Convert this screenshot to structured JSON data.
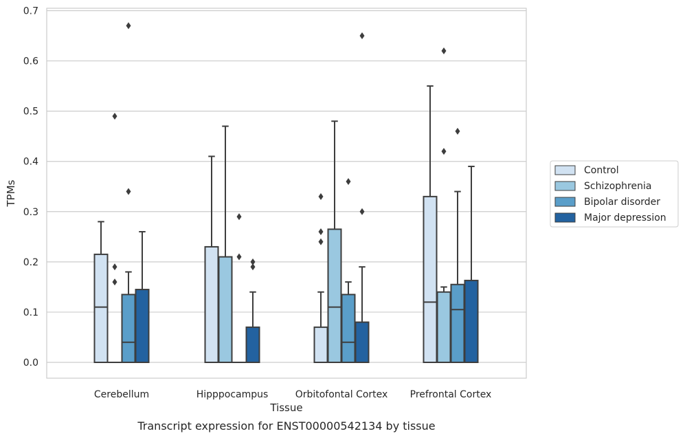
{
  "chart_data": {
    "type": "box",
    "xlabel": "Tissue",
    "ylabel": "TPMs",
    "caption": "Transcript expression for ENST00000542134 by tissue",
    "ylim": [
      -0.032,
      0.705
    ],
    "yticks": [
      0.0,
      0.1,
      0.2,
      0.3,
      0.4,
      0.5,
      0.6,
      0.7
    ],
    "ytick_labels": [
      "0.0",
      "0.1",
      "0.2",
      "0.3",
      "0.4",
      "0.5",
      "0.6",
      "0.7"
    ],
    "grid": "horizontal",
    "legend_position": "right",
    "categories": [
      "Cerebellum",
      "Hipppocampus",
      "Orbitofontal Cortex",
      "Prefrontal Cortex"
    ],
    "series": [
      {
        "name": "Control",
        "color": "#d1e2f2",
        "boxes": [
          {
            "lower_whisker": 0.0,
            "q1": 0.0,
            "median": 0.11,
            "q3": 0.215,
            "upper_whisker": 0.28,
            "outliers": []
          },
          {
            "lower_whisker": 0.0,
            "q1": 0.0,
            "median": 0.0,
            "q3": 0.23,
            "upper_whisker": 0.41,
            "outliers": []
          },
          {
            "lower_whisker": 0.0,
            "q1": 0.0,
            "median": 0.0,
            "q3": 0.07,
            "upper_whisker": 0.14,
            "outliers": [
              0.24,
              0.26,
              0.33
            ]
          },
          {
            "lower_whisker": 0.0,
            "q1": 0.0,
            "median": 0.12,
            "q3": 0.33,
            "upper_whisker": 0.55,
            "outliers": []
          }
        ]
      },
      {
        "name": "Schizophrenia",
        "color": "#9ac8e0",
        "boxes": [
          {
            "lower_whisker": 0.0,
            "q1": 0.0,
            "median": 0.0,
            "q3": 0.0,
            "upper_whisker": 0.0,
            "outliers": [
              0.16,
              0.19,
              0.49
            ]
          },
          {
            "lower_whisker": 0.0,
            "q1": 0.0,
            "median": 0.0,
            "q3": 0.21,
            "upper_whisker": 0.47,
            "outliers": []
          },
          {
            "lower_whisker": 0.0,
            "q1": 0.0,
            "median": 0.11,
            "q3": 0.265,
            "upper_whisker": 0.48,
            "outliers": []
          },
          {
            "lower_whisker": 0.0,
            "q1": 0.0,
            "median": 0.0,
            "q3": 0.14,
            "upper_whisker": 0.15,
            "outliers": [
              0.42,
              0.62
            ]
          }
        ]
      },
      {
        "name": "Bipolar disorder",
        "color": "#5a9ec9",
        "boxes": [
          {
            "lower_whisker": 0.0,
            "q1": 0.0,
            "median": 0.04,
            "q3": 0.135,
            "upper_whisker": 0.18,
            "outliers": [
              0.34,
              0.67
            ]
          },
          {
            "lower_whisker": 0.0,
            "q1": 0.0,
            "median": 0.0,
            "q3": 0.0,
            "upper_whisker": 0.0,
            "outliers": [
              0.21,
              0.29
            ]
          },
          {
            "lower_whisker": 0.0,
            "q1": 0.0,
            "median": 0.04,
            "q3": 0.135,
            "upper_whisker": 0.16,
            "outliers": [
              0.36
            ]
          },
          {
            "lower_whisker": 0.0,
            "q1": 0.0,
            "median": 0.105,
            "q3": 0.155,
            "upper_whisker": 0.34,
            "outliers": [
              0.46
            ]
          }
        ]
      },
      {
        "name": "Major depression",
        "color": "#2362a0",
        "boxes": [
          {
            "lower_whisker": 0.0,
            "q1": 0.0,
            "median": 0.0,
            "q3": 0.145,
            "upper_whisker": 0.26,
            "outliers": []
          },
          {
            "lower_whisker": 0.0,
            "q1": 0.0,
            "median": 0.0,
            "q3": 0.07,
            "upper_whisker": 0.14,
            "outliers": [
              0.19,
              0.2
            ]
          },
          {
            "lower_whisker": 0.0,
            "q1": 0.0,
            "median": 0.0,
            "q3": 0.08,
            "upper_whisker": 0.19,
            "outliers": [
              0.3,
              0.65
            ]
          },
          {
            "lower_whisker": 0.0,
            "q1": 0.0,
            "median": 0.0,
            "q3": 0.163,
            "upper_whisker": 0.39,
            "outliers": []
          }
        ]
      }
    ],
    "colors": {
      "grid": "#cccccc",
      "frame": "#cccccc",
      "line": "#3d3d3d"
    }
  }
}
